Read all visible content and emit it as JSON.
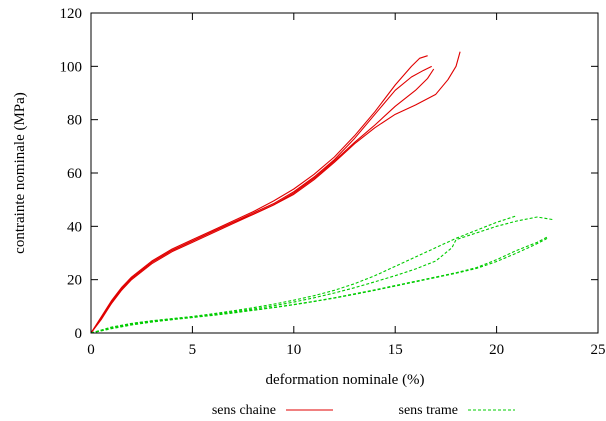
{
  "chart_data": {
    "type": "line",
    "title": "",
    "xlabel": "deformation nominale (%)",
    "ylabel": "contrainte nominale (MPa)",
    "xlim": [
      0,
      25
    ],
    "ylim": [
      0,
      120
    ],
    "xticks": [
      "0",
      "5",
      "10",
      "15",
      "20",
      "25"
    ],
    "yticks": [
      "0",
      "20",
      "40",
      "60",
      "80",
      "100",
      "120"
    ],
    "grid": false,
    "legend_position": "bottom",
    "series": [
      {
        "name": "sens chaine",
        "color": "#e00000",
        "style": "solid",
        "curves": [
          [
            [
              0,
              0
            ],
            [
              0.5,
              6
            ],
            [
              1,
              12
            ],
            [
              1.5,
              17
            ],
            [
              2,
              21
            ],
            [
              3,
              27
            ],
            [
              4,
              31.5
            ],
            [
              5,
              35
            ],
            [
              6,
              38.5
            ],
            [
              7,
              42
            ],
            [
              8,
              45.5
            ],
            [
              9,
              49.5
            ],
            [
              10,
              54
            ],
            [
              11,
              59.5
            ],
            [
              12,
              66
            ],
            [
              13,
              74
            ],
            [
              14,
              83
            ],
            [
              15,
              93
            ],
            [
              15.8,
              100
            ],
            [
              16.2,
              103
            ],
            [
              16.6,
              104
            ]
          ],
          [
            [
              0,
              0
            ],
            [
              0.5,
              5.5
            ],
            [
              1,
              11.5
            ],
            [
              1.5,
              16.5
            ],
            [
              2,
              20.5
            ],
            [
              3,
              26.5
            ],
            [
              4,
              31
            ],
            [
              5,
              34.5
            ],
            [
              6,
              38
            ],
            [
              7,
              41.5
            ],
            [
              8,
              45
            ],
            [
              9,
              48.5
            ],
            [
              10,
              53
            ],
            [
              11,
              58.5
            ],
            [
              12,
              65
            ],
            [
              13,
              73
            ],
            [
              14,
              82
            ],
            [
              15,
              91
            ],
            [
              15.8,
              96
            ],
            [
              16.4,
              98.5
            ],
            [
              16.8,
              100
            ]
          ],
          [
            [
              0,
              0
            ],
            [
              0.5,
              5
            ],
            [
              1,
              11
            ],
            [
              1.5,
              16
            ],
            [
              2,
              20
            ],
            [
              3,
              26
            ],
            [
              4,
              30.5
            ],
            [
              5,
              34
            ],
            [
              6,
              37.5
            ],
            [
              7,
              41
            ],
            [
              8,
              44.5
            ],
            [
              9,
              48
            ],
            [
              10,
              52
            ],
            [
              11,
              57.5
            ],
            [
              12,
              64
            ],
            [
              13,
              71
            ],
            [
              14,
              77
            ],
            [
              15,
              82
            ],
            [
              16,
              85.5
            ],
            [
              17,
              89.5
            ],
            [
              17.6,
              95
            ],
            [
              18,
              100
            ],
            [
              18.2,
              105.5
            ]
          ],
          [
            [
              0,
              0
            ],
            [
              0.5,
              5.5
            ],
            [
              1,
              11
            ],
            [
              1.5,
              16
            ],
            [
              2,
              20.5
            ],
            [
              3,
              26.5
            ],
            [
              4,
              31
            ],
            [
              5,
              34.5
            ],
            [
              6,
              38
            ],
            [
              7,
              41.5
            ],
            [
              8,
              44.5
            ],
            [
              9,
              48
            ],
            [
              10,
              52.5
            ],
            [
              11,
              58
            ],
            [
              12,
              64.5
            ],
            [
              13,
              71.5
            ],
            [
              14,
              78
            ],
            [
              15,
              85
            ],
            [
              16,
              91
            ],
            [
              16.6,
              95.5
            ],
            [
              16.9,
              99
            ]
          ]
        ]
      },
      {
        "name": "sens trame",
        "color": "#00cc00",
        "style": "dashed",
        "curves": [
          [
            [
              0,
              0
            ],
            [
              1,
              2.2
            ],
            [
              2,
              3.6
            ],
            [
              3,
              4.6
            ],
            [
              4,
              5.4
            ],
            [
              5,
              6.2
            ],
            [
              6,
              7.2
            ],
            [
              7,
              8.3
            ],
            [
              8,
              9.5
            ],
            [
              9,
              10.8
            ],
            [
              10,
              12.3
            ],
            [
              11,
              14
            ],
            [
              12,
              16
            ],
            [
              13,
              18.5
            ],
            [
              14,
              21.5
            ],
            [
              15,
              25
            ],
            [
              16,
              28.5
            ],
            [
              17,
              32
            ],
            [
              18,
              35.5
            ],
            [
              19,
              38.5
            ],
            [
              20,
              41.5
            ],
            [
              21,
              44
            ]
          ],
          [
            [
              0,
              0
            ],
            [
              1,
              2
            ],
            [
              2,
              3.5
            ],
            [
              3,
              4.5
            ],
            [
              4,
              5.3
            ],
            [
              5,
              6
            ],
            [
              6,
              6.9
            ],
            [
              7,
              7.9
            ],
            [
              8,
              9
            ],
            [
              9,
              10.2
            ],
            [
              10,
              11.6
            ],
            [
              11,
              13.2
            ],
            [
              12,
              15
            ],
            [
              13,
              17
            ],
            [
              14,
              19.2
            ],
            [
              15,
              21.5
            ],
            [
              16,
              24
            ],
            [
              17,
              27
            ],
            [
              17.8,
              32
            ],
            [
              18,
              35
            ],
            [
              19,
              37.5
            ],
            [
              20,
              40
            ],
            [
              21,
              42
            ],
            [
              22,
              43.5
            ],
            [
              22.8,
              42.5
            ]
          ],
          [
            [
              0,
              0
            ],
            [
              1,
              1.8
            ],
            [
              2,
              3.2
            ],
            [
              3,
              4.3
            ],
            [
              4,
              5.1
            ],
            [
              5,
              5.9
            ],
            [
              6,
              6.7
            ],
            [
              7,
              7.6
            ],
            [
              8,
              8.6
            ],
            [
              9,
              9.6
            ],
            [
              10,
              10.7
            ],
            [
              11,
              11.9
            ],
            [
              12,
              13.2
            ],
            [
              13,
              14.7
            ],
            [
              14,
              16.2
            ],
            [
              15,
              17.8
            ],
            [
              16,
              19.4
            ],
            [
              17,
              21
            ],
            [
              18,
              22.6
            ],
            [
              19,
              24.5
            ],
            [
              20,
              27.5
            ],
            [
              21,
              31
            ],
            [
              22,
              34
            ],
            [
              22.5,
              36
            ]
          ],
          [
            [
              0,
              0
            ],
            [
              1,
              1.6
            ],
            [
              2,
              3
            ],
            [
              3,
              4.1
            ],
            [
              4,
              5
            ],
            [
              5,
              5.8
            ],
            [
              6,
              6.6
            ],
            [
              7,
              7.5
            ],
            [
              8,
              8.5
            ],
            [
              9,
              9.5
            ],
            [
              10,
              10.6
            ],
            [
              11,
              11.8
            ],
            [
              12,
              13.1
            ],
            [
              13,
              14.5
            ],
            [
              14,
              16
            ],
            [
              15,
              17.6
            ],
            [
              16,
              19.2
            ],
            [
              17,
              20.8
            ],
            [
              18,
              22.4
            ],
            [
              19,
              24.2
            ],
            [
              20,
              26.8
            ],
            [
              21,
              30
            ],
            [
              22,
              33.5
            ],
            [
              22.5,
              35.5
            ]
          ]
        ]
      }
    ]
  }
}
